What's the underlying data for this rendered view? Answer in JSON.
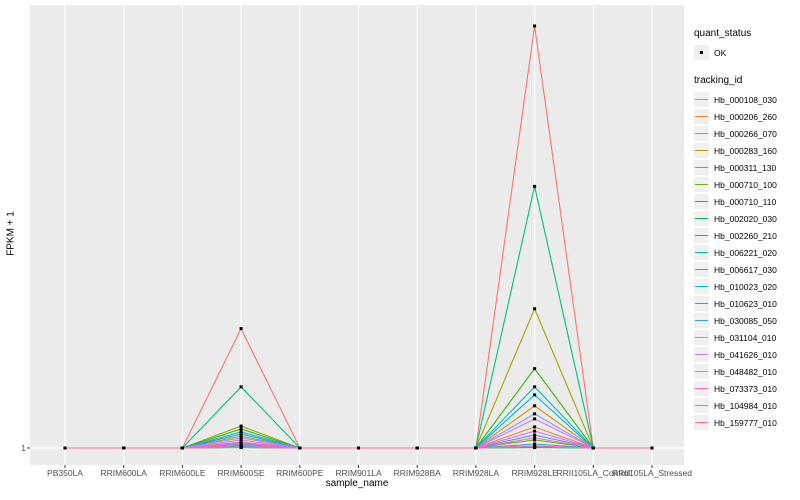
{
  "figure": {
    "ylabel": "FPKM + 1",
    "xlabel": "sample_name",
    "ytick_label": "1",
    "panel_bg": "#EBEBEB",
    "grid_color": "#FFFFFF",
    "tick_label_color": "#4D4D4D",
    "marker_color": "#000000"
  },
  "legend": {
    "quant_status": {
      "title": "quant_status",
      "items": [
        {
          "label": "OK",
          "symbol": "point"
        }
      ]
    },
    "tracking_id": {
      "title": "tracking_id"
    }
  },
  "chart_data": {
    "type": "line",
    "title": "",
    "xlabel": "sample_name",
    "ylabel": "FPKM + 1",
    "legend_position": "right",
    "grid": "vertical white gridlines per sample on gray panel; horizontal gridline at y tick 1",
    "markers": "small black point at every sample for every series (quant_status = OK)",
    "y_axis": {
      "tick_labels": [
        "1"
      ],
      "note": "Only the value 1 (baseline, FPKM+1=1) is labeled on the y axis; series values below are estimated fractions of the full panel height above that baseline (1.0 = tallest peak, Hb_000108_030 at RRIM928LE)."
    },
    "categories": [
      "PB350LA",
      "RRIM600LA",
      "RRIM600LE",
      "RRIM600SE",
      "RRIM600PE",
      "RRIM901LA",
      "RRIM928BA",
      "RRIM928LA",
      "RRIM928LE",
      "RRII105LA_Control",
      "RRII105LA_Stressed"
    ],
    "series": [
      {
        "name": "Hb_000108_030",
        "color": "#F8766D",
        "values": [
          0,
          0,
          0,
          0.283,
          0,
          0,
          0,
          0,
          1.0,
          0,
          0
        ]
      },
      {
        "name": "Hb_000206_260",
        "color": "#EA8331",
        "values": [
          0,
          0,
          0,
          0.014,
          0,
          0,
          0,
          0,
          0.05,
          0,
          0
        ]
      },
      {
        "name": "Hb_000266_070",
        "color": "#D89000",
        "values": [
          0,
          0,
          0,
          0.028,
          0,
          0,
          0,
          0,
          0.1,
          0,
          0
        ]
      },
      {
        "name": "Hb_000283_160",
        "color": "#C09B00",
        "values": [
          0,
          0,
          0,
          0.0015,
          0,
          0,
          0,
          0,
          0.002,
          0,
          0
        ]
      },
      {
        "name": "Hb_000311_130",
        "color": "#A3A500",
        "values": [
          0,
          0,
          0,
          0.052,
          0,
          0,
          0,
          0,
          0.33,
          0,
          0
        ]
      },
      {
        "name": "Hb_000710_100",
        "color": "#7CAE00",
        "values": [
          0,
          0,
          0,
          0.005,
          0,
          0,
          0,
          0,
          0.019,
          0,
          0
        ]
      },
      {
        "name": "Hb_000710_110",
        "color": "#39B600",
        "values": [
          0,
          0,
          0,
          0.045,
          0,
          0,
          0,
          0,
          0.188,
          0,
          0
        ]
      },
      {
        "name": "Hb_002020_030",
        "color": "#00BB4E",
        "values": [
          0,
          0,
          0,
          0.001,
          0,
          0,
          0,
          0,
          0.001,
          0,
          0
        ]
      },
      {
        "name": "Hb_002260_210",
        "color": "#00BF7D",
        "values": [
          0,
          0,
          0,
          0.145,
          0,
          0,
          0,
          0,
          0.62,
          0,
          0
        ]
      },
      {
        "name": "Hb_006221_020",
        "color": "#00C1A3",
        "values": [
          0,
          0,
          0,
          0.002,
          0,
          0,
          0,
          0,
          0.004,
          0,
          0
        ]
      },
      {
        "name": "Hb_006617_030",
        "color": "#00BFC4",
        "values": [
          0,
          0,
          0,
          0.038,
          0,
          0,
          0,
          0,
          0.145,
          0,
          0
        ]
      },
      {
        "name": "Hb_010023_020",
        "color": "#00BAE0",
        "values": [
          0,
          0,
          0,
          0.0035,
          0,
          0,
          0,
          0,
          0.0095,
          0,
          0
        ]
      },
      {
        "name": "Hb_010623_010",
        "color": "#00B0F6",
        "values": [
          0,
          0,
          0,
          0.033,
          0,
          0,
          0,
          0,
          0.126,
          0,
          0
        ]
      },
      {
        "name": "Hb_030085_050",
        "color": "#35A2FF",
        "values": [
          0,
          0,
          0,
          0.0095,
          0,
          0,
          0,
          0,
          0.031,
          0,
          0
        ]
      },
      {
        "name": "Hb_031104_010",
        "color": "#9590FF",
        "values": [
          0,
          0,
          0,
          0.024,
          0,
          0,
          0,
          0,
          0.081,
          0,
          0
        ]
      },
      {
        "name": "Hb_041626_010",
        "color": "#C77CFF",
        "values": [
          0,
          0,
          0,
          0.019,
          0,
          0,
          0,
          0,
          0.069,
          0,
          0
        ]
      },
      {
        "name": "Hb_048482_010",
        "color": "#E76BF3",
        "values": [
          0,
          0,
          0,
          0.012,
          0,
          0,
          0,
          0,
          0.04,
          0,
          0
        ]
      },
      {
        "name": "Hb_073373_010",
        "color": "#FA62DB",
        "values": [
          0,
          0,
          0,
          0.0025,
          0,
          0,
          0,
          0,
          0.005,
          0,
          0
        ]
      },
      {
        "name": "Hb_104984_010",
        "color": "#FF62BC",
        "values": [
          0,
          0,
          0,
          0.007,
          0,
          0,
          0,
          0,
          0.024,
          0,
          0
        ]
      },
      {
        "name": "Hb_159777_010",
        "color": "#FF6A98",
        "values": [
          0,
          0,
          0,
          0.0015,
          0,
          0,
          0,
          0,
          0.003,
          0,
          0
        ]
      }
    ]
  }
}
